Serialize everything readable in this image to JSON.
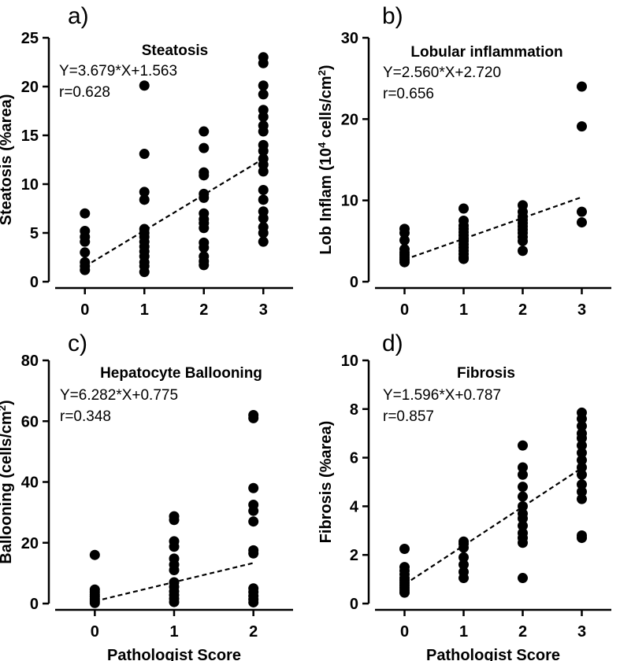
{
  "chart_data": [
    {
      "type": "scatter",
      "panel_label": "a)",
      "title": "Steatosis",
      "equation": "Y=3.679*X+1.563",
      "r_text": "r=0.628",
      "ylabel": "Steatosis (%area)",
      "xlabel": "",
      "x_ticks": [
        "0",
        "1",
        "2",
        "3"
      ],
      "y_ticks": [
        "0",
        "5",
        "10",
        "15",
        "20",
        "25"
      ],
      "xlim": [
        -0.5,
        3.5
      ],
      "ylim": [
        0,
        25
      ],
      "fit": {
        "slope": 3.679,
        "intercept": 1.563,
        "x_range": [
          0,
          3
        ]
      },
      "points": [
        [
          0,
          7.0
        ],
        [
          0,
          5.2
        ],
        [
          0,
          4.6
        ],
        [
          0,
          4.1
        ],
        [
          0,
          3.0
        ],
        [
          0,
          2.0
        ],
        [
          0,
          1.6
        ],
        [
          0,
          1.2
        ],
        [
          1,
          20.1
        ],
        [
          1,
          13.1
        ],
        [
          1,
          9.2
        ],
        [
          1,
          8.4
        ],
        [
          1,
          5.4
        ],
        [
          1,
          5.0
        ],
        [
          1,
          4.6
        ],
        [
          1,
          4.1
        ],
        [
          1,
          3.6
        ],
        [
          1,
          3.1
        ],
        [
          1,
          2.6
        ],
        [
          1,
          2.0
        ],
        [
          1,
          1.6
        ],
        [
          1,
          1.0
        ],
        [
          2,
          15.4
        ],
        [
          2,
          13.7
        ],
        [
          2,
          11.2
        ],
        [
          2,
          10.9
        ],
        [
          2,
          9.0
        ],
        [
          2,
          8.6
        ],
        [
          2,
          7.0
        ],
        [
          2,
          6.4
        ],
        [
          2,
          6.0
        ],
        [
          2,
          5.5
        ],
        [
          2,
          4.0
        ],
        [
          2,
          3.5
        ],
        [
          2,
          2.6
        ],
        [
          2,
          2.1
        ],
        [
          2,
          1.7
        ],
        [
          3,
          23.0
        ],
        [
          3,
          22.4
        ],
        [
          3,
          20.1
        ],
        [
          3,
          19.2
        ],
        [
          3,
          17.6
        ],
        [
          3,
          16.9
        ],
        [
          3,
          16.0
        ],
        [
          3,
          15.4
        ],
        [
          3,
          14.0
        ],
        [
          3,
          13.4
        ],
        [
          3,
          12.6
        ],
        [
          3,
          12.0
        ],
        [
          3,
          11.3
        ],
        [
          3,
          9.4
        ],
        [
          3,
          8.4
        ],
        [
          3,
          7.2
        ],
        [
          3,
          6.5
        ],
        [
          3,
          5.6
        ],
        [
          3,
          5.0
        ],
        [
          3,
          4.1
        ]
      ]
    },
    {
      "type": "scatter",
      "panel_label": "b)",
      "title": "Lobular inflammation",
      "equation": "Y=2.560*X+2.720",
      "r_text": "r=0.656",
      "ylabel": "Lob Inflam (10",
      "ylabel_sup": "4",
      "ylabel_mid": " cells/cm",
      "ylabel_sup2": "2",
      "ylabel_end": ")",
      "xlabel": "",
      "x_ticks": [
        "0",
        "1",
        "2",
        "3"
      ],
      "y_ticks": [
        "0",
        "10",
        "20",
        "30"
      ],
      "xlim": [
        -0.5,
        3.5
      ],
      "ylim": [
        0,
        30
      ],
      "fit": {
        "slope": 2.56,
        "intercept": 2.72,
        "x_range": [
          0,
          3
        ]
      },
      "points": [
        [
          0,
          6.5
        ],
        [
          0,
          6.0
        ],
        [
          0,
          5.1
        ],
        [
          0,
          4.0
        ],
        [
          0,
          3.6
        ],
        [
          0,
          3.3
        ],
        [
          0,
          3.0
        ],
        [
          0,
          2.7
        ],
        [
          0,
          2.4
        ],
        [
          1,
          9.0
        ],
        [
          1,
          7.5
        ],
        [
          1,
          6.9
        ],
        [
          1,
          6.5
        ],
        [
          1,
          6.1
        ],
        [
          1,
          5.7
        ],
        [
          1,
          5.3
        ],
        [
          1,
          5.0
        ],
        [
          1,
          4.6
        ],
        [
          1,
          4.2
        ],
        [
          1,
          3.8
        ],
        [
          1,
          3.4
        ],
        [
          1,
          3.0
        ],
        [
          1,
          2.8
        ],
        [
          2,
          9.4
        ],
        [
          2,
          8.6
        ],
        [
          2,
          8.0
        ],
        [
          2,
          7.6
        ],
        [
          2,
          7.2
        ],
        [
          2,
          6.8
        ],
        [
          2,
          6.4
        ],
        [
          2,
          6.0
        ],
        [
          2,
          5.5
        ],
        [
          2,
          5.0
        ],
        [
          2,
          3.8
        ],
        [
          3,
          24.0
        ],
        [
          3,
          19.1
        ],
        [
          3,
          8.6
        ],
        [
          3,
          7.3
        ]
      ]
    },
    {
      "type": "scatter",
      "panel_label": "c)",
      "title": "Hepatocyte Ballooning",
      "equation": "Y=6.282*X+0.775",
      "r_text": "r=0.348",
      "ylabel": "Ballooning (cells/cm",
      "ylabel_sup": "2",
      "ylabel_end": ")",
      "xlabel": "Pathologist Score",
      "x_ticks": [
        "0",
        "1",
        "2"
      ],
      "y_ticks": [
        "0",
        "20",
        "40",
        "60",
        "80"
      ],
      "xlim": [
        -0.5,
        2.5
      ],
      "ylim": [
        0,
        80
      ],
      "fit": {
        "slope": 6.282,
        "intercept": 0.775,
        "x_range": [
          0,
          2
        ]
      },
      "points": [
        [
          0,
          16.0
        ],
        [
          0,
          4.6
        ],
        [
          0,
          3.8
        ],
        [
          0,
          3.0
        ],
        [
          0,
          2.3
        ],
        [
          0,
          1.5
        ],
        [
          0,
          0.8
        ],
        [
          0,
          0.2
        ],
        [
          1,
          28.7
        ],
        [
          1,
          27.5
        ],
        [
          1,
          20.5
        ],
        [
          1,
          18.7
        ],
        [
          1,
          14.8
        ],
        [
          1,
          12.8
        ],
        [
          1,
          11.0
        ],
        [
          1,
          7.0
        ],
        [
          1,
          5.5
        ],
        [
          1,
          4.0
        ],
        [
          1,
          2.8
        ],
        [
          1,
          1.6
        ],
        [
          1,
          0.5
        ],
        [
          2,
          62.0
        ],
        [
          2,
          61.0
        ],
        [
          2,
          38.0
        ],
        [
          2,
          32.5
        ],
        [
          2,
          30.5
        ],
        [
          2,
          27.0
        ],
        [
          2,
          17.5
        ],
        [
          2,
          16.5
        ],
        [
          2,
          5.0
        ],
        [
          2,
          3.8
        ],
        [
          2,
          2.5
        ],
        [
          2,
          1.4
        ],
        [
          2,
          0.4
        ]
      ]
    },
    {
      "type": "scatter",
      "panel_label": "d)",
      "title": "Fibrosis",
      "equation": "Y=1.596*X+0.787",
      "r_text": "r=0.857",
      "ylabel": "Fibrosis (%area)",
      "xlabel": "Pathologist Score",
      "x_ticks": [
        "0",
        "1",
        "2",
        "3"
      ],
      "y_ticks": [
        "0",
        "2",
        "4",
        "6",
        "8",
        "10"
      ],
      "xlim": [
        -0.5,
        3.5
      ],
      "ylim": [
        0,
        10
      ],
      "fit": {
        "slope": 1.596,
        "intercept": 0.787,
        "x_range": [
          0,
          3
        ]
      },
      "points": [
        [
          0,
          2.25
        ],
        [
          0,
          1.5
        ],
        [
          0,
          1.35
        ],
        [
          0,
          1.2
        ],
        [
          0,
          1.05
        ],
        [
          0,
          0.95
        ],
        [
          0,
          0.85
        ],
        [
          0,
          0.75
        ],
        [
          0,
          0.65
        ],
        [
          0,
          0.55
        ],
        [
          0,
          0.45
        ],
        [
          1,
          2.55
        ],
        [
          1,
          2.45
        ],
        [
          1,
          2.3
        ],
        [
          1,
          1.9
        ],
        [
          1,
          1.6
        ],
        [
          1,
          1.3
        ],
        [
          1,
          1.05
        ],
        [
          2,
          6.5
        ],
        [
          2,
          5.6
        ],
        [
          2,
          5.3
        ],
        [
          2,
          4.8
        ],
        [
          2,
          4.4
        ],
        [
          2,
          4.0
        ],
        [
          2,
          3.7
        ],
        [
          2,
          3.5
        ],
        [
          2,
          3.2
        ],
        [
          2,
          2.9
        ],
        [
          2,
          2.7
        ],
        [
          2,
          2.5
        ],
        [
          2,
          1.05
        ],
        [
          3,
          7.85
        ],
        [
          3,
          7.6
        ],
        [
          3,
          7.3
        ],
        [
          3,
          7.0
        ],
        [
          3,
          6.8
        ],
        [
          3,
          6.5
        ],
        [
          3,
          6.2
        ],
        [
          3,
          5.9
        ],
        [
          3,
          5.6
        ],
        [
          3,
          5.3
        ],
        [
          3,
          4.9
        ],
        [
          3,
          4.6
        ],
        [
          3,
          4.3
        ],
        [
          3,
          2.8
        ],
        [
          3,
          2.7
        ]
      ]
    }
  ]
}
